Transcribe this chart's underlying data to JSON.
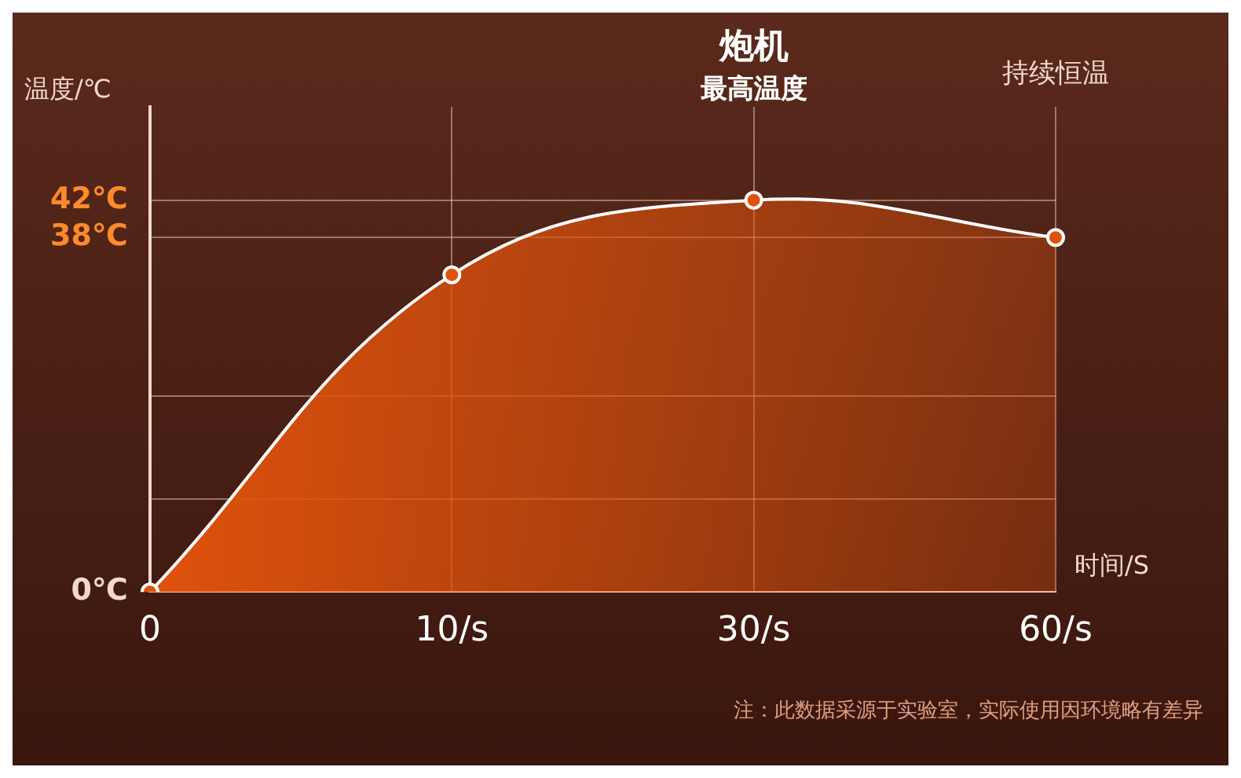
{
  "chart_data": {
    "type": "area",
    "categories": [
      "0",
      "10/s",
      "30/s",
      "60/s"
    ],
    "series": [
      {
        "color": "#e0520c",
        "values": [
          0,
          34,
          42,
          38
        ]
      }
    ],
    "ylim": [
      0,
      52
    ],
    "yticks": [
      {
        "value": 0,
        "label": "0℃"
      },
      {
        "value": 10,
        "label": null
      },
      {
        "value": 21,
        "label": null
      },
      {
        "value": 38,
        "label": "38℃"
      },
      {
        "value": 42,
        "label": "42℃"
      }
    ],
    "ylabel": "温度/℃",
    "xlabel": "时间/S",
    "grid": true,
    "marker": "circle",
    "legend": false,
    "annotations": [
      "炮机",
      "最高温度",
      "持续恒温",
      "注：此数据采源于实验室，实际使用因环境略有差异"
    ]
  }
}
